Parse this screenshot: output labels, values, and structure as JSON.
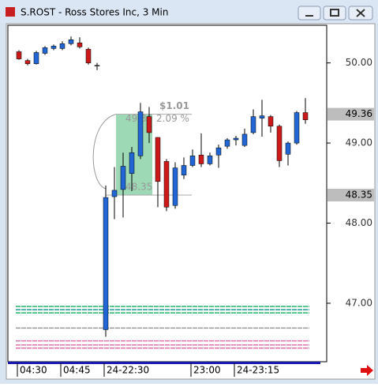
{
  "chart_data": {
    "type": "candlestick",
    "title": "S.ROST - Ross Stores Inc, 3 Min",
    "categories": [
      "04:30",
      null,
      null,
      null,
      null,
      "04:45",
      null,
      null,
      null,
      null,
      "24-22:30",
      null,
      null,
      null,
      null,
      null,
      null,
      null,
      null,
      null,
      "23:00",
      null,
      null,
      null,
      null,
      "24-23:15",
      null,
      null,
      null,
      null,
      null,
      null,
      null,
      null
    ],
    "open": [
      50.14,
      50.03,
      49.99,
      50.12,
      50.18,
      50.18,
      50.24,
      50.25,
      50.17,
      49.97,
      46.67,
      48.33,
      48.42,
      48.62,
      48.84,
      49.33,
      49.07,
      48.77,
      48.22,
      48.6,
      48.72,
      48.85,
      48.74,
      48.85,
      48.96,
      49.04,
      48.97,
      49.13,
      49.31,
      49.33,
      49.21,
      48.86,
      49.0,
      49.38
    ],
    "high": [
      50.16,
      50.05,
      50.15,
      50.21,
      50.23,
      50.27,
      50.33,
      50.32,
      50.19,
      50.0,
      48.47,
      48.7,
      48.88,
      48.95,
      49.5,
      49.45,
      49.07,
      48.8,
      48.76,
      48.82,
      48.92,
      49.12,
      48.88,
      48.98,
      49.06,
      49.09,
      49.18,
      49.42,
      49.54,
      49.35,
      49.23,
      49.02,
      49.4,
      49.56
    ],
    "low": [
      50.04,
      49.97,
      49.98,
      50.1,
      50.16,
      50.16,
      50.22,
      50.18,
      49.98,
      49.91,
      46.58,
      48.05,
      48.07,
      48.4,
      48.8,
      49.0,
      48.2,
      48.15,
      48.18,
      48.55,
      48.7,
      48.7,
      48.72,
      48.69,
      48.93,
      48.97,
      48.95,
      49.11,
      49.08,
      49.13,
      48.7,
      48.72,
      48.98,
      49.24
    ],
    "close": [
      50.05,
      49.99,
      50.13,
      50.19,
      50.21,
      50.24,
      50.29,
      50.2,
      50.0,
      49.97,
      48.32,
      48.41,
      48.71,
      48.88,
      49.39,
      49.13,
      48.52,
      48.2,
      48.69,
      48.72,
      48.84,
      48.74,
      48.84,
      48.94,
      49.04,
      49.06,
      49.11,
      49.33,
      49.34,
      49.21,
      48.78,
      49.0,
      49.38,
      49.29
    ],
    "up_color": "#2166d4",
    "down_color": "#cc1a1a",
    "ylim": [
      46.27,
      50.47
    ],
    "yticks": [
      {
        "value": 50,
        "label": "50.00"
      },
      {
        "value": 49,
        "label": "49.00"
      },
      {
        "value": 48,
        "label": "48.00"
      },
      {
        "value": 47,
        "label": "47.00"
      }
    ],
    "measurement": {
      "high": 49.36,
      "low": 48.35,
      "change": "$1.01",
      "percent": "2.09 %"
    },
    "levels": [
      {
        "value": 46.96,
        "color": "#22b26a"
      },
      {
        "value": 46.92,
        "color": "#1a9a9a"
      },
      {
        "value": 46.88,
        "color": "#22b26a"
      },
      {
        "value": 46.69,
        "color": "#999999"
      },
      {
        "value": 46.53,
        "color": "#e070a8"
      },
      {
        "value": 46.48,
        "color": "#e070a8"
      },
      {
        "value": 46.44,
        "color": "#e070a8"
      }
    ]
  }
}
